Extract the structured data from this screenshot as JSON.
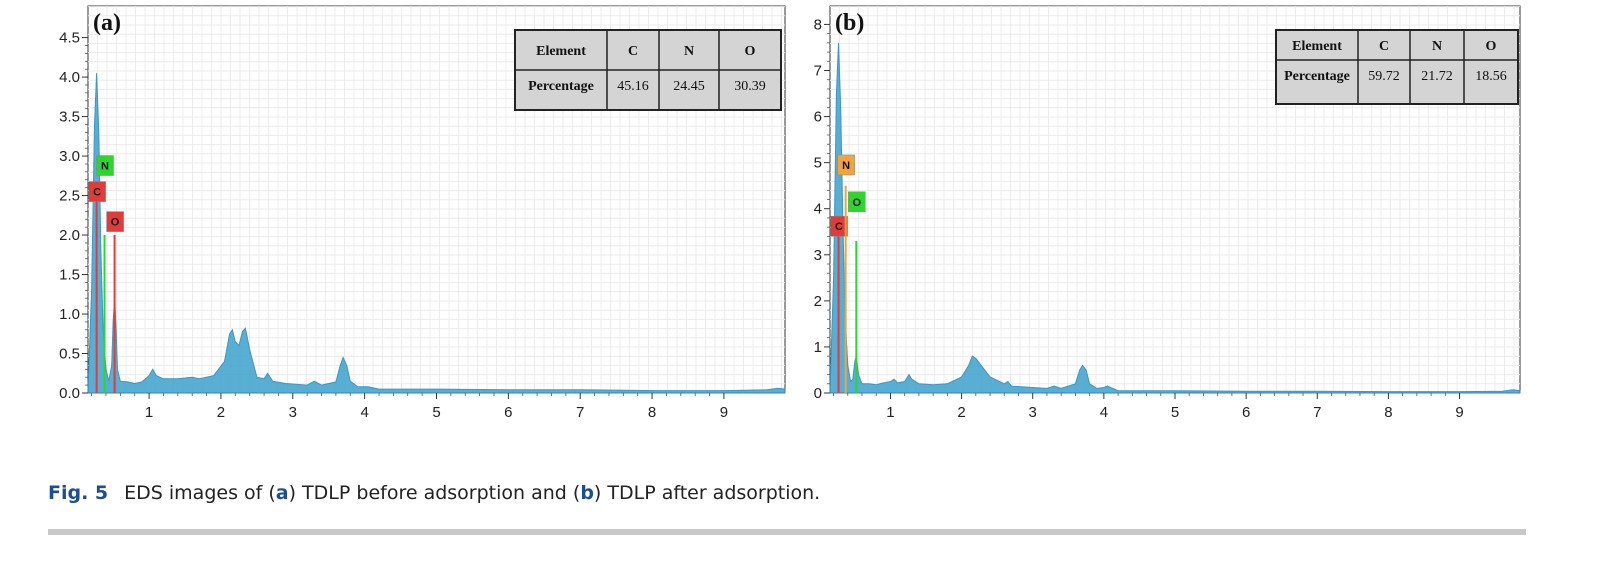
{
  "caption": {
    "fig_label": "Fig. 5",
    "text_1": "EDS images of (",
    "a": "a",
    "text_2": ") TDLP before adsorption and (",
    "b": "b",
    "text_3": ") TDLP after adsorption."
  },
  "colors": {
    "spectrum_fill": "#4aa8d0",
    "spectrum_stroke": "#2f8fbd",
    "C": "#e23b3b",
    "N_a": "#2fd52f",
    "N_b": "#f2a43a",
    "O_a": "#e23b3b",
    "O_b": "#2fd52f"
  },
  "chart_data": [
    {
      "type": "area",
      "panel_label": "(a)",
      "x_ticks": [
        1,
        2,
        3,
        4,
        5,
        6,
        7,
        8,
        9
      ],
      "y_ticks": [
        "0.0",
        "0.5",
        "1.0",
        "1.5",
        "2.0",
        "2.5",
        "3.0",
        "3.5",
        "4.0",
        "4.5"
      ],
      "xlim": [
        0.15,
        9.85
      ],
      "ylim": [
        0,
        4.9
      ],
      "series": [
        {
          "x": [
            0.15,
            0.2,
            0.24,
            0.27,
            0.3,
            0.33,
            0.36,
            0.4,
            0.44,
            0.48,
            0.5,
            0.52,
            0.54,
            0.56,
            0.6,
            0.7,
            0.8,
            0.9,
            1.0,
            1.05,
            1.1,
            1.2,
            1.4,
            1.6,
            1.7,
            1.9,
            2.05,
            2.12,
            2.16,
            2.2,
            2.25,
            2.3,
            2.34,
            2.4,
            2.5,
            2.6,
            2.65,
            2.72,
            2.9,
            3.2,
            3.3,
            3.4,
            3.6,
            3.66,
            3.7,
            3.75,
            3.8,
            3.9,
            4.05,
            4.2,
            5.0,
            6.0,
            7.0,
            8.0,
            9.0,
            9.6,
            9.75,
            9.85
          ],
          "y": [
            0.05,
            1.3,
            3.4,
            4.05,
            3.3,
            1.8,
            0.8,
            0.3,
            0.15,
            0.35,
            0.9,
            1.2,
            0.85,
            0.3,
            0.15,
            0.14,
            0.12,
            0.14,
            0.22,
            0.3,
            0.22,
            0.18,
            0.18,
            0.2,
            0.18,
            0.22,
            0.4,
            0.75,
            0.8,
            0.65,
            0.6,
            0.78,
            0.82,
            0.55,
            0.2,
            0.18,
            0.25,
            0.15,
            0.12,
            0.1,
            0.15,
            0.1,
            0.14,
            0.35,
            0.45,
            0.35,
            0.15,
            0.08,
            0.08,
            0.05,
            0.05,
            0.04,
            0.04,
            0.03,
            0.03,
            0.04,
            0.06,
            0.05
          ]
        }
      ],
      "element_markers": [
        {
          "element": "C",
          "x": 0.27,
          "line_top": 2.5,
          "tag_y": 2.55
        },
        {
          "element": "N",
          "x": 0.38,
          "line_top": 2.0,
          "tag_y": 2.88
        },
        {
          "element": "O",
          "x": 0.52,
          "line_top": 2.0,
          "tag_y": 2.17
        }
      ],
      "table": {
        "header_label": "Element",
        "row_label": "Percentage",
        "columns": [
          "C",
          "N",
          "O"
        ],
        "values": [
          "45.16",
          "24.45",
          "30.39"
        ]
      }
    },
    {
      "type": "area",
      "panel_label": "(b)",
      "x_ticks": [
        1,
        2,
        3,
        4,
        5,
        6,
        7,
        8,
        9
      ],
      "y_ticks": [
        "0",
        "1",
        "2",
        "3",
        "4",
        "5",
        "6",
        "7",
        "8"
      ],
      "xlim": [
        0.15,
        9.85
      ],
      "ylim": [
        0,
        8.4
      ],
      "series": [
        {
          "x": [
            0.15,
            0.2,
            0.24,
            0.27,
            0.3,
            0.33,
            0.36,
            0.4,
            0.44,
            0.47,
            0.5,
            0.52,
            0.55,
            0.6,
            0.7,
            0.8,
            0.9,
            1.0,
            1.05,
            1.1,
            1.2,
            1.26,
            1.3,
            1.4,
            1.6,
            1.8,
            2.0,
            2.1,
            2.15,
            2.2,
            2.3,
            2.4,
            2.6,
            2.65,
            2.7,
            3.0,
            3.2,
            3.3,
            3.4,
            3.6,
            3.66,
            3.7,
            3.75,
            3.8,
            3.9,
            4.0,
            4.05,
            4.2,
            5.0,
            6.0,
            7.0,
            8.0,
            9.0,
            9.6,
            9.75,
            9.85
          ],
          "y": [
            0.1,
            2.5,
            6.5,
            7.6,
            6.2,
            3.8,
            1.8,
            0.6,
            0.25,
            0.3,
            0.7,
            0.8,
            0.4,
            0.2,
            0.2,
            0.18,
            0.22,
            0.25,
            0.3,
            0.22,
            0.25,
            0.4,
            0.3,
            0.2,
            0.18,
            0.2,
            0.35,
            0.6,
            0.8,
            0.75,
            0.55,
            0.35,
            0.2,
            0.25,
            0.15,
            0.12,
            0.1,
            0.15,
            0.1,
            0.2,
            0.5,
            0.6,
            0.5,
            0.2,
            0.1,
            0.12,
            0.15,
            0.05,
            0.05,
            0.04,
            0.04,
            0.03,
            0.03,
            0.04,
            0.07,
            0.05
          ]
        }
      ],
      "element_markers": [
        {
          "element": "C",
          "x": 0.27,
          "line_top": 3.5,
          "tag_y": 3.62
        },
        {
          "element": "N",
          "x": 0.37,
          "line_top": 4.5,
          "tag_y": 4.95
        },
        {
          "element": "O",
          "x": 0.52,
          "line_top": 3.3,
          "tag_y": 4.15
        }
      ],
      "table": {
        "header_label": "Element",
        "row_label": "Percentage",
        "columns": [
          "C",
          "N",
          "O"
        ],
        "values": [
          "59.72",
          "21.72",
          "18.56"
        ]
      }
    }
  ]
}
